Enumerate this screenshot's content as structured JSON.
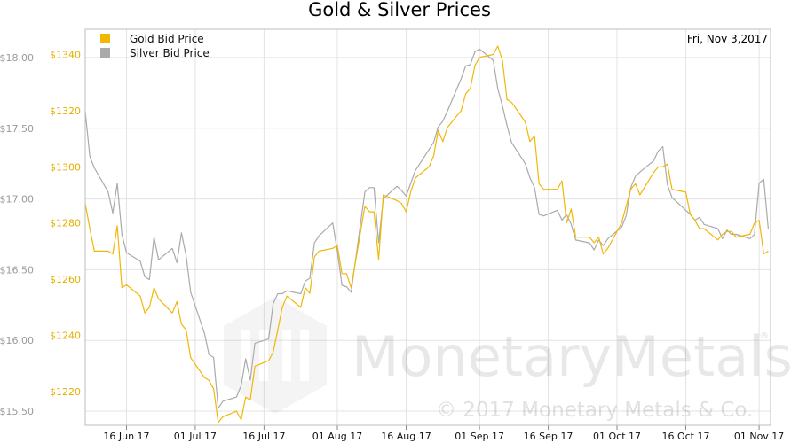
{
  "chart_data": {
    "type": "line",
    "title": "Gold & Silver Prices",
    "date_label": "Fri, Nov 3,2017",
    "xlabel": "",
    "x_ticks": [
      "16 Jun 17",
      "01 Jul 17",
      "16 Jul 17",
      "01 Aug 17",
      "16 Aug 17",
      "01 Sep 17",
      "16 Sep 17",
      "01 Oct 17",
      "16 Oct 17",
      "01 Nov 17"
    ],
    "left_axis": {
      "ylim": [
        15.4,
        18.2
      ],
      "ticks": [
        "$15.50",
        "$16.00",
        "$16.50",
        "$17.00",
        "$17.50",
        "$18.00"
      ],
      "tick_values": [
        15.5,
        16.0,
        16.5,
        17.0,
        17.5,
        18.0
      ]
    },
    "right_axis": {
      "ylim": [
        1208,
        1349
      ],
      "ticks": [
        "$1220",
        "$1240",
        "$1260",
        "$1280",
        "$1300",
        "$1320",
        "$1340"
      ],
      "tick_values": [
        1220,
        1240,
        1260,
        1280,
        1300,
        1320,
        1340
      ]
    },
    "grid": true,
    "legend_position": "top-left",
    "series": [
      {
        "name": "Gold Bid Price",
        "color": "#f2b705",
        "axis": "right",
        "x": [
          "2017-06-07",
          "2017-06-08",
          "2017-06-09",
          "2017-06-12",
          "2017-06-13",
          "2017-06-14",
          "2017-06-15",
          "2017-06-16",
          "2017-06-19",
          "2017-06-20",
          "2017-06-21",
          "2017-06-22",
          "2017-06-23",
          "2017-06-26",
          "2017-06-27",
          "2017-06-28",
          "2017-06-29",
          "2017-06-30",
          "2017-07-03",
          "2017-07-04",
          "2017-07-05",
          "2017-07-06",
          "2017-07-07",
          "2017-07-10",
          "2017-07-11",
          "2017-07-12",
          "2017-07-13",
          "2017-07-14",
          "2017-07-17",
          "2017-07-18",
          "2017-07-19",
          "2017-07-20",
          "2017-07-21",
          "2017-07-24",
          "2017-07-25",
          "2017-07-26",
          "2017-07-27",
          "2017-07-28",
          "2017-07-31",
          "2017-08-01",
          "2017-08-02",
          "2017-08-03",
          "2017-08-04",
          "2017-08-07",
          "2017-08-08",
          "2017-08-09",
          "2017-08-10",
          "2017-08-11",
          "2017-08-14",
          "2017-08-15",
          "2017-08-16",
          "2017-08-17",
          "2017-08-18",
          "2017-08-21",
          "2017-08-22",
          "2017-08-23",
          "2017-08-24",
          "2017-08-25",
          "2017-08-28",
          "2017-08-29",
          "2017-08-30",
          "2017-08-31",
          "2017-09-01",
          "2017-09-04",
          "2017-09-05",
          "2017-09-06",
          "2017-09-07",
          "2017-09-08",
          "2017-09-11",
          "2017-09-12",
          "2017-09-13",
          "2017-09-14",
          "2017-09-15",
          "2017-09-18",
          "2017-09-19",
          "2017-09-20",
          "2017-09-21",
          "2017-09-22",
          "2017-09-25",
          "2017-09-26",
          "2017-09-27",
          "2017-09-28",
          "2017-09-29",
          "2017-10-02",
          "2017-10-03",
          "2017-10-04",
          "2017-10-05",
          "2017-10-06",
          "2017-10-09",
          "2017-10-10",
          "2017-10-11",
          "2017-10-12",
          "2017-10-13",
          "2017-10-16",
          "2017-10-17",
          "2017-10-18",
          "2017-10-19",
          "2017-10-20",
          "2017-10-23",
          "2017-10-24",
          "2017-10-25",
          "2017-10-26",
          "2017-10-27",
          "2017-10-30",
          "2017-10-31",
          "2017-11-01",
          "2017-11-02",
          "2017-11-03"
        ],
        "values": [
          1287,
          1278,
          1270,
          1270,
          1269,
          1279,
          1257,
          1258,
          1254,
          1248,
          1250,
          1257,
          1253,
          1248,
          1252,
          1244,
          1242,
          1232,
          1225,
          1224,
          1221,
          1209,
          1211,
          1213,
          1210,
          1218,
          1217,
          1229,
          1231,
          1234,
          1242,
          1250,
          1254,
          1250,
          1257,
          1255,
          1268,
          1270,
          1271,
          1272,
          1262,
          1262,
          1257,
          1286,
          1284,
          1284,
          1267,
          1290,
          1288,
          1287,
          1284,
          1291,
          1296,
          1300,
          1304,
          1313,
          1309,
          1314,
          1320,
          1326,
          1328,
          1336,
          1339,
          1340,
          1343,
          1338,
          1324,
          1323,
          1316,
          1309,
          1311,
          1294,
          1292,
          1292,
          1295,
          1280,
          1285,
          1275,
          1275,
          1273,
          1275,
          1269,
          1271,
          1280,
          1286,
          1292,
          1294,
          1290,
          1298,
          1300,
          1300,
          1301,
          1292,
          1291,
          1283,
          1281,
          1278,
          1278,
          1274,
          1276,
          1277,
          1277,
          1275,
          1276,
          1280,
          1281,
          1269,
          1270
        ]
      },
      {
        "name": "Silver Bid Price",
        "color": "#aaaaaa",
        "axis": "left",
        "x": [
          "2017-06-07",
          "2017-06-08",
          "2017-06-09",
          "2017-06-12",
          "2017-06-13",
          "2017-06-14",
          "2017-06-15",
          "2017-06-16",
          "2017-06-19",
          "2017-06-20",
          "2017-06-21",
          "2017-06-22",
          "2017-06-23",
          "2017-06-26",
          "2017-06-27",
          "2017-06-28",
          "2017-06-29",
          "2017-06-30",
          "2017-07-03",
          "2017-07-04",
          "2017-07-05",
          "2017-07-06",
          "2017-07-07",
          "2017-07-10",
          "2017-07-11",
          "2017-07-12",
          "2017-07-13",
          "2017-07-14",
          "2017-07-17",
          "2017-07-18",
          "2017-07-19",
          "2017-07-20",
          "2017-07-21",
          "2017-07-24",
          "2017-07-25",
          "2017-07-26",
          "2017-07-27",
          "2017-07-28",
          "2017-07-31",
          "2017-08-01",
          "2017-08-02",
          "2017-08-03",
          "2017-08-04",
          "2017-08-07",
          "2017-08-08",
          "2017-08-09",
          "2017-08-10",
          "2017-08-11",
          "2017-08-14",
          "2017-08-15",
          "2017-08-16",
          "2017-08-17",
          "2017-08-18",
          "2017-08-21",
          "2017-08-22",
          "2017-08-23",
          "2017-08-24",
          "2017-08-25",
          "2017-08-28",
          "2017-08-29",
          "2017-08-30",
          "2017-08-31",
          "2017-09-01",
          "2017-09-04",
          "2017-09-05",
          "2017-09-06",
          "2017-09-07",
          "2017-09-08",
          "2017-09-11",
          "2017-09-12",
          "2017-09-13",
          "2017-09-14",
          "2017-09-15",
          "2017-09-18",
          "2017-09-19",
          "2017-09-20",
          "2017-09-21",
          "2017-09-22",
          "2017-09-25",
          "2017-09-26",
          "2017-09-27",
          "2017-09-28",
          "2017-09-29",
          "2017-10-02",
          "2017-10-03",
          "2017-10-04",
          "2017-10-05",
          "2017-10-06",
          "2017-10-09",
          "2017-10-10",
          "2017-10-11",
          "2017-10-12",
          "2017-10-13",
          "2017-10-16",
          "2017-10-17",
          "2017-10-18",
          "2017-10-19",
          "2017-10-20",
          "2017-10-23",
          "2017-10-24",
          "2017-10-25",
          "2017-10-26",
          "2017-10-27",
          "2017-10-30",
          "2017-10-31",
          "2017-11-01",
          "2017-11-02",
          "2017-11-03"
        ],
        "values": [
          17.62,
          17.3,
          17.22,
          17.05,
          16.9,
          17.11,
          16.75,
          16.62,
          16.56,
          16.45,
          16.43,
          16.73,
          16.57,
          16.65,
          16.55,
          16.76,
          16.6,
          16.34,
          16.05,
          15.9,
          15.88,
          15.52,
          15.57,
          15.6,
          15.68,
          15.87,
          15.72,
          15.98,
          16.01,
          16.26,
          16.33,
          16.33,
          16.35,
          16.33,
          16.42,
          16.44,
          16.69,
          16.74,
          16.83,
          16.63,
          16.39,
          16.38,
          16.34,
          17.05,
          17.08,
          17.08,
          16.69,
          17.0,
          17.09,
          17.06,
          17.02,
          17.11,
          17.2,
          17.35,
          17.4,
          17.51,
          17.55,
          17.62,
          17.85,
          17.94,
          17.95,
          18.04,
          18.06,
          17.98,
          17.78,
          17.66,
          17.52,
          17.4,
          17.25,
          17.15,
          17.08,
          16.89,
          16.88,
          16.92,
          16.85,
          16.89,
          16.82,
          16.71,
          16.69,
          16.64,
          16.71,
          16.67,
          16.72,
          16.8,
          16.88,
          17.08,
          17.16,
          17.19,
          17.27,
          17.34,
          17.37,
          17.1,
          17.01,
          16.92,
          16.89,
          16.85,
          16.87,
          16.82,
          16.79,
          16.72,
          16.78,
          16.75,
          16.75,
          16.72,
          16.75,
          17.11,
          17.14,
          16.79
        ]
      }
    ],
    "watermark": {
      "brand": "MonetaryMetals",
      "brand_part1": "Monetary",
      "brand_part2": "Metals",
      "copyright": "© 2017 Monetary Metals & Co."
    }
  }
}
